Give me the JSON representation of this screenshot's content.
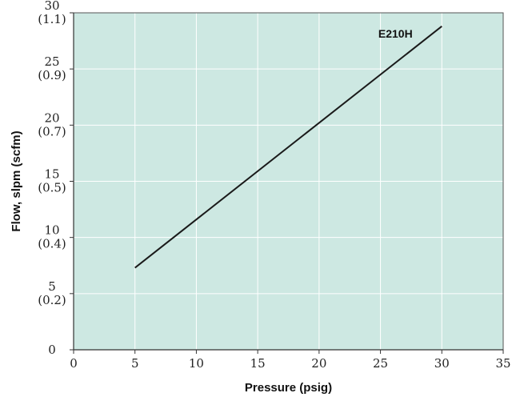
{
  "chart_data": {
    "type": "line",
    "title": "",
    "xlabel": "Pressure (psig)",
    "ylabel": "Flow, slpm (scfm)",
    "xlim": [
      0,
      35
    ],
    "ylim": [
      0,
      30
    ],
    "x_ticks": [
      {
        "value": 0,
        "label": "0"
      },
      {
        "value": 5,
        "label": "5"
      },
      {
        "value": 10,
        "label": "10"
      },
      {
        "value": 15,
        "label": "15"
      },
      {
        "value": 20,
        "label": "20"
      },
      {
        "value": 25,
        "label": "25"
      },
      {
        "value": 30,
        "label": "30"
      },
      {
        "value": 35,
        "label": "35"
      }
    ],
    "y_ticks": [
      {
        "value": 0,
        "label": "0",
        "sublabel": ""
      },
      {
        "value": 5,
        "label": "5",
        "sublabel": "(0.2)"
      },
      {
        "value": 10,
        "label": "10",
        "sublabel": "(0.4)"
      },
      {
        "value": 15,
        "label": "15",
        "sublabel": "(0.5)"
      },
      {
        "value": 20,
        "label": "20",
        "sublabel": "(0.7)"
      },
      {
        "value": 25,
        "label": "25",
        "sublabel": "(0.9)"
      },
      {
        "value": 30,
        "label": "30",
        "sublabel": "(1.1)"
      }
    ],
    "grid": true,
    "series": [
      {
        "name": "E210H",
        "color": "#1a1a1a",
        "x": [
          5,
          30
        ],
        "y": [
          7.3,
          28.8
        ]
      }
    ],
    "colors": {
      "plot_background": "#cde8e2",
      "grid": "#ffffff",
      "axis": "#555555"
    }
  }
}
